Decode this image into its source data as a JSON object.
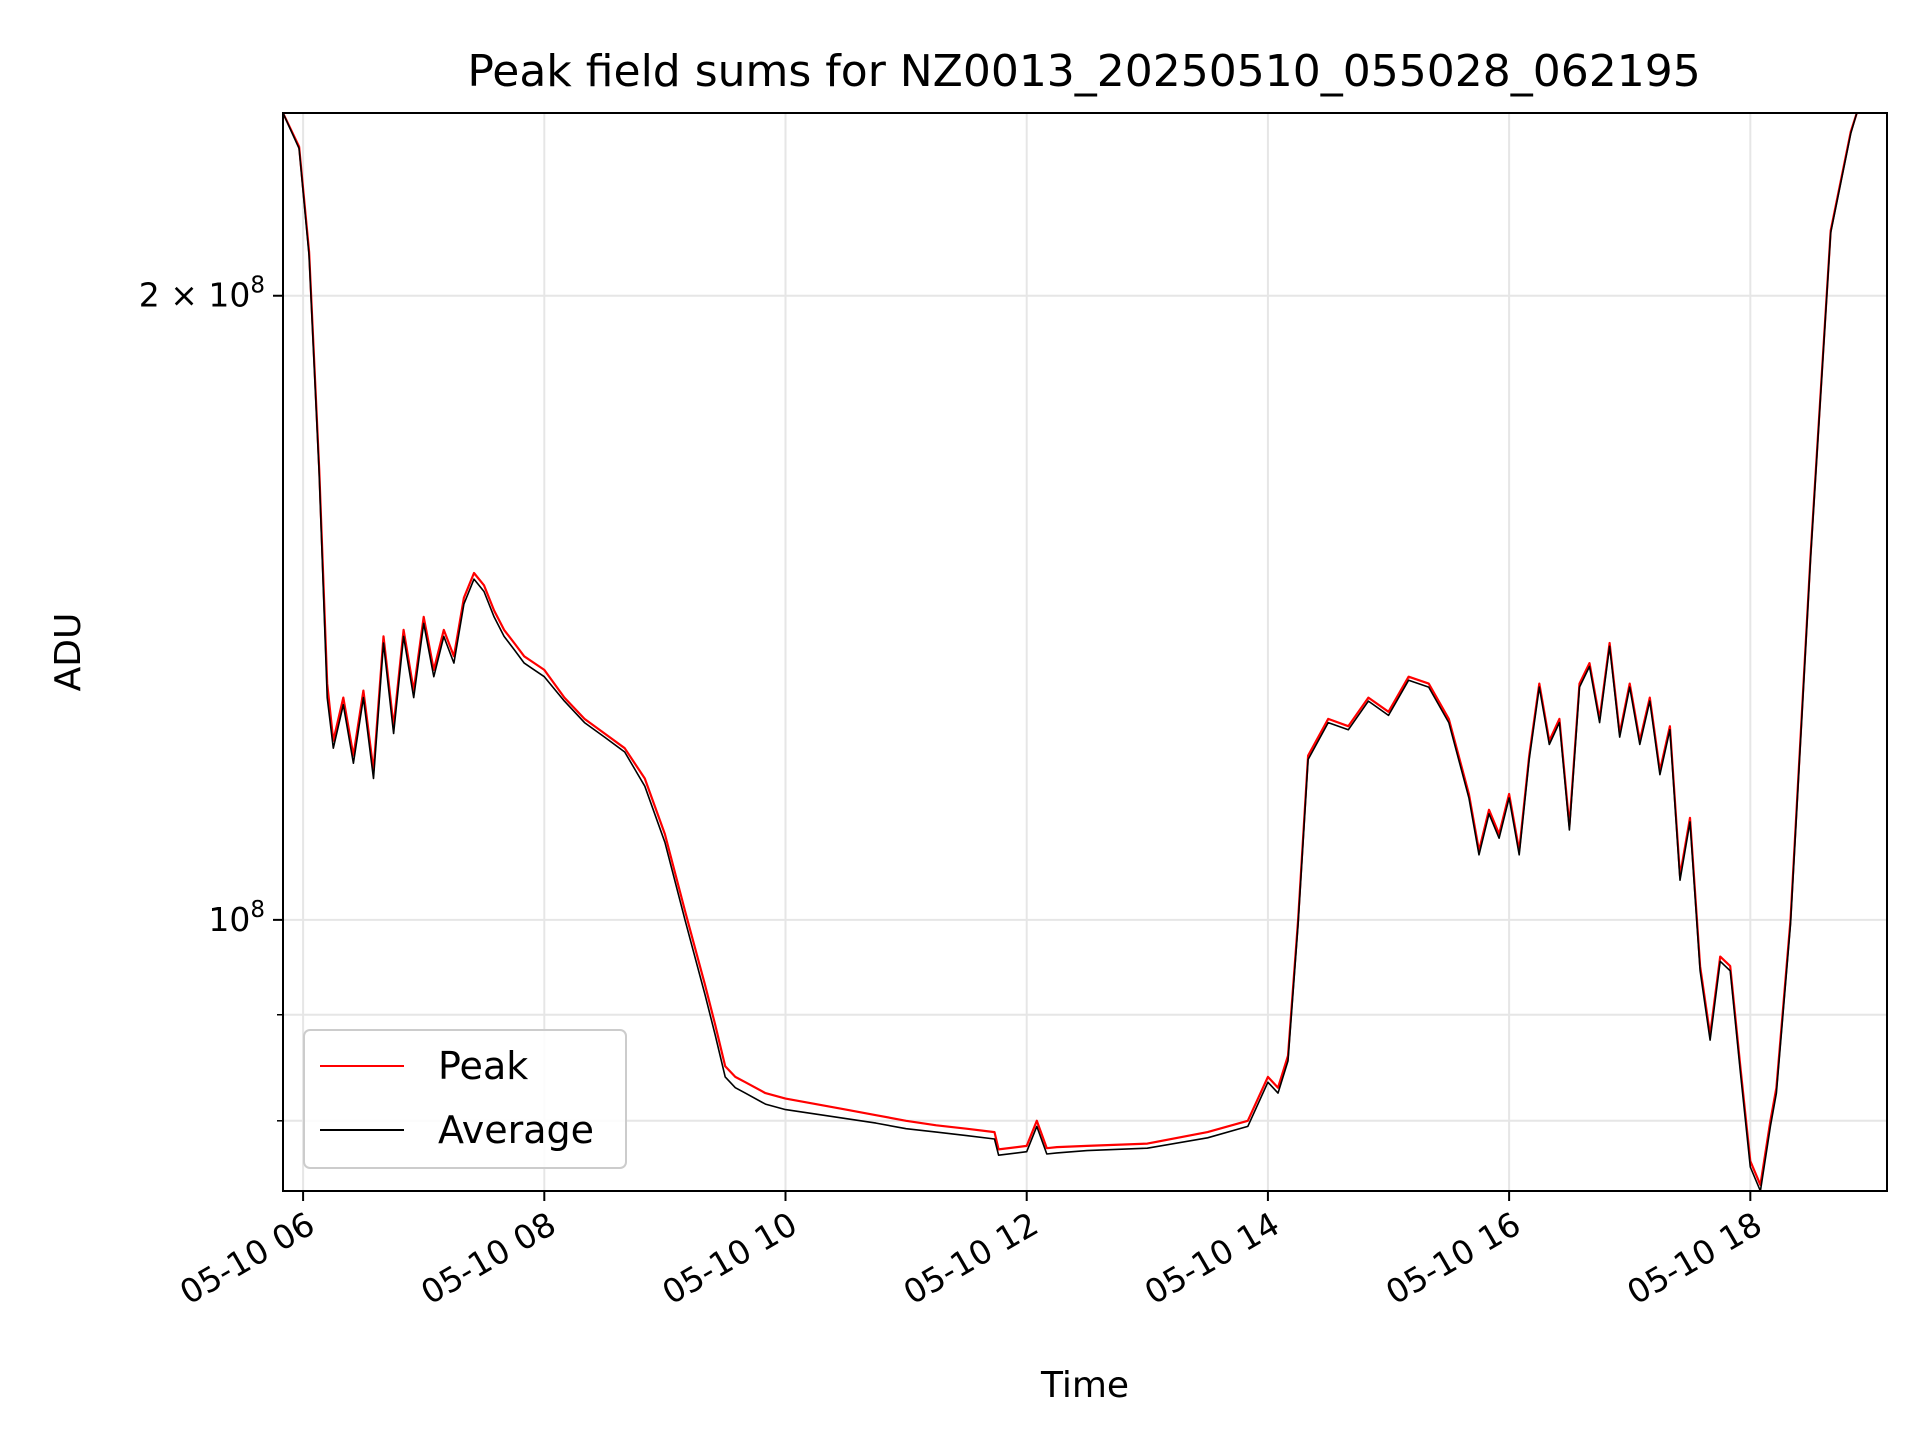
{
  "chart_data": {
    "type": "line",
    "title": "Peak field sums for NZ0013_20250510_055028_062195",
    "xlabel": "Time",
    "ylabel": "ADU",
    "yscale": "log",
    "ylim": [
      74000000,
      245000000
    ],
    "x_tick_labels": [
      "05-10 06",
      "05-10 08",
      "05-10 10",
      "05-10 12",
      "05-10 14",
      "05-10 16",
      "05-10 18"
    ],
    "y_tick_labels": [
      "2 × 10^8",
      "10^8"
    ],
    "grid": true,
    "legend_position": "lower-left",
    "colors": {
      "peak": "#ff0000",
      "average": "#000000"
    },
    "series": [
      {
        "name": "Peak",
        "color": "#ff0000",
        "x": [
          "05:50",
          "05:58",
          "06:03",
          "06:08",
          "06:12",
          "06:15",
          "06:20",
          "06:25",
          "06:30",
          "06:35",
          "06:40",
          "06:45",
          "06:50",
          "06:55",
          "07:00",
          "07:05",
          "07:10",
          "07:15",
          "07:20",
          "07:25",
          "07:30",
          "07:35",
          "07:40",
          "07:45",
          "07:50",
          "07:55",
          "08:00",
          "08:10",
          "08:20",
          "08:30",
          "08:40",
          "08:50",
          "09:00",
          "09:10",
          "09:20",
          "09:25",
          "09:30",
          "09:35",
          "09:40",
          "09:50",
          "10:00",
          "10:15",
          "10:30",
          "10:45",
          "11:00",
          "11:15",
          "11:30",
          "11:44",
          "11:46",
          "12:00",
          "12:05",
          "12:10",
          "12:15",
          "12:30",
          "13:00",
          "13:30",
          "13:50",
          "14:00",
          "14:05",
          "14:10",
          "14:15",
          "14:20",
          "14:30",
          "14:40",
          "14:50",
          "15:00",
          "15:10",
          "15:20",
          "15:30",
          "15:40",
          "15:45",
          "15:50",
          "15:55",
          "16:00",
          "16:05",
          "16:10",
          "16:15",
          "16:20",
          "16:25",
          "16:30",
          "16:35",
          "16:40",
          "16:45",
          "16:50",
          "16:55",
          "17:00",
          "17:05",
          "17:10",
          "17:15",
          "17:20",
          "17:25",
          "17:30",
          "17:35",
          "17:40",
          "17:45",
          "17:50",
          "17:55",
          "18:00",
          "18:05",
          "18:10",
          "18:13",
          "18:20",
          "18:30",
          "18:40",
          "18:50",
          "18:53"
        ],
        "values": [
          245000000,
          236000000,
          210000000,
          165000000,
          130000000,
          122000000,
          128000000,
          120000000,
          129000000,
          118000000,
          137000000,
          124000000,
          138000000,
          129000000,
          140000000,
          132000000,
          138000000,
          134000000,
          143000000,
          147000000,
          145000000,
          141000000,
          138000000,
          136000000,
          134000000,
          133000000,
          132000000,
          128000000,
          125000000,
          123000000,
          121000000,
          117000000,
          110000000,
          101000000,
          93000000,
          89000000,
          85000000,
          84000000,
          83500000,
          82500000,
          82000000,
          81500000,
          81000000,
          80500000,
          80000000,
          79600000,
          79300000,
          79000000,
          77500000,
          77800000,
          80000000,
          77600000,
          77700000,
          77800000,
          78000000,
          79000000,
          80000000,
          84000000,
          83000000,
          86000000,
          100000000,
          120000000,
          125000000,
          124000000,
          128000000,
          126000000,
          131000000,
          130000000,
          125000000,
          115000000,
          108000000,
          113000000,
          110000000,
          115000000,
          108000000,
          120000000,
          130000000,
          122000000,
          125000000,
          111000000,
          130000000,
          133000000,
          125000000,
          136000000,
          123000000,
          130000000,
          122000000,
          128000000,
          118000000,
          124000000,
          105000000,
          112000000,
          95000000,
          88000000,
          96000000,
          95000000,
          85000000,
          76500000,
          74500000,
          80000000,
          83000000,
          100000000,
          150000000,
          215000000,
          240000000,
          245000000
        ]
      },
      {
        "name": "Average",
        "color": "#000000",
        "x": [
          "05:50",
          "05:58",
          "06:03",
          "06:08",
          "06:12",
          "06:15",
          "06:20",
          "06:25",
          "06:30",
          "06:35",
          "06:40",
          "06:45",
          "06:50",
          "06:55",
          "07:00",
          "07:05",
          "07:10",
          "07:15",
          "07:20",
          "07:25",
          "07:30",
          "07:35",
          "07:40",
          "07:45",
          "07:50",
          "07:55",
          "08:00",
          "08:10",
          "08:20",
          "08:30",
          "08:40",
          "08:50",
          "09:00",
          "09:10",
          "09:20",
          "09:25",
          "09:30",
          "09:35",
          "09:40",
          "09:50",
          "10:00",
          "10:15",
          "10:30",
          "10:45",
          "11:00",
          "11:15",
          "11:30",
          "11:44",
          "11:46",
          "12:00",
          "12:05",
          "12:10",
          "12:15",
          "12:30",
          "13:00",
          "13:30",
          "13:50",
          "14:00",
          "14:05",
          "14:10",
          "14:15",
          "14:20",
          "14:30",
          "14:40",
          "14:50",
          "15:00",
          "15:10",
          "15:20",
          "15:30",
          "15:40",
          "15:45",
          "15:50",
          "15:55",
          "16:00",
          "16:05",
          "16:10",
          "16:15",
          "16:20",
          "16:25",
          "16:30",
          "16:35",
          "16:40",
          "16:45",
          "16:50",
          "16:55",
          "17:00",
          "17:05",
          "17:10",
          "17:15",
          "17:20",
          "17:25",
          "17:30",
          "17:35",
          "17:40",
          "17:45",
          "17:50",
          "17:55",
          "18:00",
          "18:05",
          "18:10",
          "18:13",
          "18:20",
          "18:30",
          "18:40",
          "18:50",
          "18:53"
        ],
        "values": [
          245000000,
          235500000,
          209000000,
          164000000,
          128000000,
          121000000,
          127000000,
          119000000,
          128000000,
          117000000,
          136000000,
          123000000,
          137000000,
          128000000,
          139000000,
          131000000,
          137000000,
          133000000,
          142000000,
          146000000,
          144000000,
          140000000,
          137000000,
          135000000,
          133000000,
          132000000,
          131000000,
          127500000,
          124500000,
          122500000,
          120500000,
          116000000,
          109000000,
          100000000,
          92000000,
          88000000,
          84000000,
          83000000,
          82500000,
          81500000,
          81000000,
          80600000,
          80200000,
          79800000,
          79300000,
          79000000,
          78700000,
          78400000,
          77000000,
          77300000,
          79500000,
          77100000,
          77200000,
          77400000,
          77600000,
          78500000,
          79500000,
          83500000,
          82500000,
          85500000,
          99500000,
          119500000,
          124500000,
          123500000,
          127500000,
          125500000,
          130500000,
          129500000,
          124500000,
          114500000,
          107500000,
          112500000,
          109500000,
          114500000,
          107500000,
          119500000,
          129500000,
          121500000,
          124500000,
          110500000,
          129500000,
          132500000,
          124500000,
          135500000,
          122500000,
          129500000,
          121500000,
          127500000,
          117500000,
          123500000,
          104500000,
          111500000,
          94500000,
          87500000,
          95500000,
          94500000,
          84500000,
          76000000,
          74000000,
          79500000,
          82500000,
          99500000,
          149500000,
          214500000,
          239500000,
          245000000
        ]
      }
    ]
  }
}
